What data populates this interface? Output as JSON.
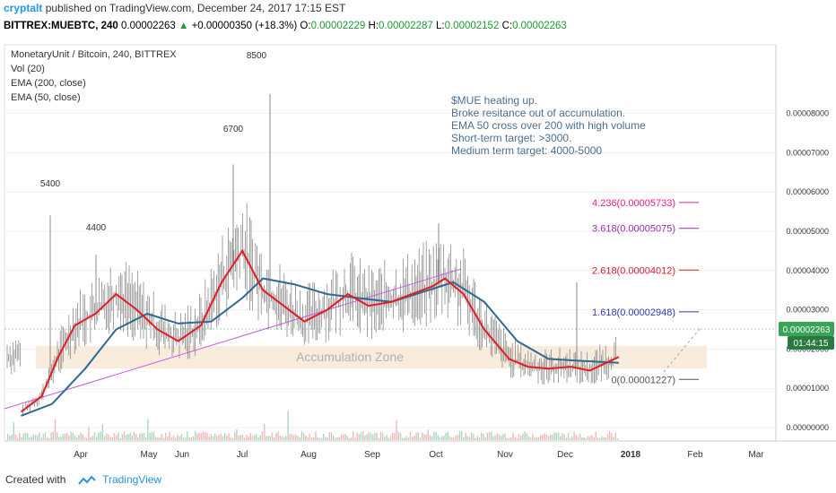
{
  "header": {
    "author": "cryptalt",
    "published_text": "published on TradingView.com, December 24, 2017 17:15 EST",
    "symbol": "BITTREX:MUEBTC, 240",
    "price": "0.00002263",
    "change_arrow": "▲",
    "change": "+0.00000350 (+18.3%)",
    "o_label": "O:",
    "o_value": "0.00002229",
    "h_label": "H:",
    "h_value": "0.00002287",
    "l_label": "L:",
    "l_value": "0.00002152",
    "c_label": "C:",
    "c_value": "0.00002263"
  },
  "legend": {
    "title": "MonetaryUnit / Bitcoin, 240, BITTREX",
    "vol": "Vol (20)",
    "ema200": "EMA (200, close)",
    "ema50": "EMA (50, close)"
  },
  "annotations": {
    "note": [
      "$MUE heating up.",
      "Broke resitance out of accumulation.",
      "EMA 50 cross over 200 with high volume",
      "Short-term target: >3000.",
      "Medium term target: 4000-5000"
    ],
    "zone": "Accumulation Zone",
    "peaks": [
      "5400",
      "4400",
      "6700",
      "8500"
    ]
  },
  "footer": {
    "created_with": "Created with",
    "brand": "TradingView"
  },
  "colors": {
    "ema50": "#e51b24",
    "ema200": "#2e6a8f",
    "candle": "#7a7a7a",
    "trendline": "#c85ce0",
    "zone_fill": "#f8e9d6",
    "fib0": "#555555",
    "fib1618": "#3333bb",
    "fib2618": "#d41c2c",
    "fib3618": "#9c27b0",
    "fib4236": "#e91e8c",
    "price_tag": "#37a557",
    "timer_tag": "#2a7a3f"
  },
  "chart_data": {
    "type": "line",
    "title": "MonetaryUnit / Bitcoin, 240, BITTREX",
    "x_ticks": [
      "Apr",
      "May",
      "Jun",
      "Jul",
      "Aug",
      "Sep",
      "Oct",
      "Nov",
      "Dec",
      "2018",
      "Feb",
      "Mar"
    ],
    "y_ticks": [
      "0.00000000",
      "0.00001000",
      "0.00002000",
      "0.00003000",
      "0.00004000",
      "0.00005000",
      "0.00006000",
      "0.00007000",
      "0.00008000"
    ],
    "ylim": [
      0,
      9e-05
    ],
    "last_price_label": "0.00002263",
    "timer_label": "01:44:15",
    "fib_levels": [
      {
        "label": "0(0.00001227)",
        "value": 1.227e-05
      },
      {
        "label": "1.618(0.00002948)",
        "value": 2.948e-05
      },
      {
        "label": "2.618(0.00004012)",
        "value": 4.012e-05
      },
      {
        "label": "3.618(0.00005075)",
        "value": 5.075e-05
      },
      {
        "label": "4.236(0.00005733)",
        "value": 5.733e-05
      }
    ],
    "series": [
      {
        "name": "EMA (50, close)",
        "x": [
          "2017-03-10",
          "2017-03-20",
          "2017-03-28",
          "2017-04-05",
          "2017-04-15",
          "2017-04-25",
          "2017-05-05",
          "2017-05-15",
          "2017-05-25",
          "2017-06-05",
          "2017-06-15",
          "2017-06-25",
          "2017-07-05",
          "2017-07-15",
          "2017-07-25",
          "2017-08-05",
          "2017-08-15",
          "2017-08-25",
          "2017-09-05",
          "2017-09-15",
          "2017-09-25",
          "2017-10-01",
          "2017-10-10",
          "2017-10-20",
          "2017-11-01",
          "2017-11-10",
          "2017-11-20",
          "2017-12-01",
          "2017-12-10",
          "2017-12-24"
        ],
        "values": [
          4e-06,
          8e-06,
          1.8e-05,
          2.6e-05,
          2.9e-05,
          3.4e-05,
          3e-05,
          2.5e-05,
          2.2e-05,
          2.6e-05,
          3.7e-05,
          4.5e-05,
          3.5e-05,
          3.1e-05,
          2.7e-05,
          3e-05,
          3.4e-05,
          3.1e-05,
          3.2e-05,
          3.4e-05,
          3.6e-05,
          3.8e-05,
          3.4e-05,
          2.5e-05,
          1.75e-05,
          1.55e-05,
          1.5e-05,
          1.55e-05,
          1.45e-05,
          1.8e-05
        ]
      },
      {
        "name": "EMA (200, close)",
        "x": [
          "2017-03-10",
          "2017-03-25",
          "2017-04-10",
          "2017-04-25",
          "2017-05-10",
          "2017-05-25",
          "2017-06-10",
          "2017-06-25",
          "2017-07-05",
          "2017-07-20",
          "2017-08-05",
          "2017-08-20",
          "2017-09-05",
          "2017-09-20",
          "2017-10-05",
          "2017-10-20",
          "2017-11-05",
          "2017-11-20",
          "2017-12-05",
          "2017-12-24"
        ],
        "values": [
          3e-06,
          6e-06,
          1.5e-05,
          2.5e-05,
          2.9e-05,
          2.65e-05,
          2.7e-05,
          3.3e-05,
          3.8e-05,
          3.65e-05,
          3.4e-05,
          3.3e-05,
          3.2e-05,
          3.45e-05,
          3.7e-05,
          3.2e-05,
          2.2e-05,
          1.75e-05,
          1.7e-05,
          1.65e-05
        ]
      }
    ]
  }
}
